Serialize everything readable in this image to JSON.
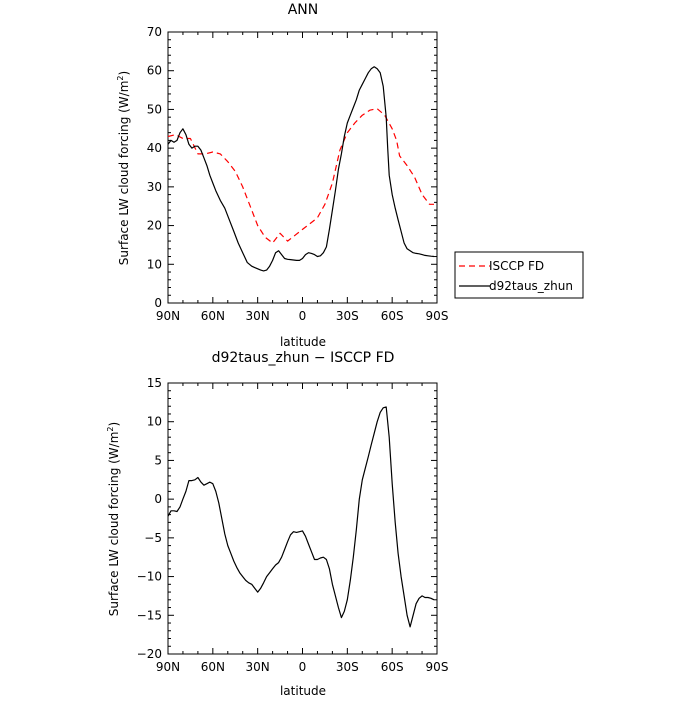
{
  "chart_data": [
    {
      "type": "line",
      "title": "ANN",
      "xlabel": "latitude",
      "ylabel": "Surface LW cloud forcing (W/m²)",
      "ylabel_main": "Surface LW cloud forcing (W/m",
      "ylabel_sup": "2",
      "ylabel_tail": ")",
      "xlim": [
        90,
        -90
      ],
      "ylim": [
        0,
        70
      ],
      "xticks": [
        90,
        60,
        30,
        0,
        -30,
        -60,
        -90
      ],
      "xtick_labels": [
        "90N",
        "60N",
        "30N",
        "0",
        "30S",
        "60S",
        "90S"
      ],
      "yticks": [
        0,
        10,
        20,
        30,
        40,
        50,
        60,
        70
      ],
      "ytick_labels": [
        "0",
        "10",
        "20",
        "30",
        "40",
        "50",
        "60",
        "70"
      ],
      "grid": false,
      "legend_position": "right",
      "series": [
        {
          "name": "ISCCP FD",
          "color": "#ff0000",
          "dash": "dashed",
          "x": [
            90,
            85,
            80,
            75,
            70,
            65,
            60,
            55,
            50,
            45,
            40,
            35,
            30,
            25,
            20,
            15,
            10,
            5,
            0,
            -5,
            -10,
            -15,
            -20,
            -25,
            -30,
            -35,
            -40,
            -45,
            -50,
            -55,
            -60,
            -63,
            -65,
            -70,
            -75,
            -80,
            -85,
            -88
          ],
          "values": [
            43,
            43.5,
            42.5,
            42.5,
            38.5,
            38.5,
            39,
            38.5,
            36.5,
            34,
            30,
            25,
            20,
            17,
            15.5,
            18,
            16,
            17.5,
            19,
            20.5,
            22,
            25.5,
            31,
            39.5,
            44,
            46.5,
            48.5,
            49.8,
            50.2,
            48.5,
            45,
            42,
            38,
            35.5,
            32.5,
            28,
            25.5,
            25.5
          ]
        },
        {
          "name": "d92taus_zhun",
          "color": "#000000",
          "dash": "solid",
          "x": [
            90,
            88,
            86,
            84,
            82,
            80,
            78,
            76,
            74,
            72,
            70,
            68,
            66,
            64,
            62,
            60,
            58,
            55,
            52,
            49,
            46,
            43,
            40,
            37,
            34,
            31,
            28,
            26,
            24,
            22,
            20,
            18,
            16,
            14,
            12,
            10,
            8,
            6,
            4,
            2,
            0,
            -2,
            -4,
            -6,
            -8,
            -10,
            -12,
            -14,
            -16,
            -18,
            -20,
            -22,
            -24,
            -26,
            -28,
            -30,
            -32,
            -34,
            -36,
            -38,
            -40,
            -42,
            -44,
            -46,
            -48,
            -50,
            -52,
            -54,
            -56,
            -57,
            -58,
            -60,
            -62,
            -64,
            -66,
            -68,
            -70,
            -72,
            -74,
            -76,
            -78,
            -80,
            -82,
            -84,
            -86,
            -88
          ],
          "values": [
            41,
            42,
            41.5,
            42,
            44,
            45,
            43.5,
            41,
            40,
            40.5,
            40.5,
            39.5,
            37.5,
            35.5,
            33,
            31,
            29,
            26.5,
            24.5,
            21.5,
            18.5,
            15.5,
            13,
            10.5,
            9.5,
            9,
            8.5,
            8.3,
            8.5,
            9.5,
            11,
            13,
            13.5,
            12.5,
            11.5,
            11.3,
            11.2,
            11.1,
            11,
            11,
            11.5,
            12.5,
            13,
            12.8,
            12.5,
            12,
            12.2,
            13,
            14.5,
            19,
            24,
            29,
            34.5,
            38.5,
            43,
            46.5,
            48.5,
            50.5,
            52.5,
            55,
            56.5,
            58,
            59.5,
            60.5,
            61,
            60.5,
            59.5,
            56,
            48,
            40,
            33,
            28,
            24.5,
            21.5,
            18.5,
            15.5,
            14,
            13.5,
            13,
            12.8,
            12.7,
            12.5,
            12.3,
            12.2,
            12.1,
            12
          ]
        }
      ]
    },
    {
      "type": "line",
      "title": "d92taus_zhun − ISCCP FD",
      "xlabel": "latitude",
      "ylabel": "Surface LW cloud forcing (W/m²)",
      "ylabel_main": "Surface LW cloud forcing (W/m",
      "ylabel_sup": "2",
      "ylabel_tail": ")",
      "xlim": [
        90,
        -90
      ],
      "ylim": [
        -20,
        15
      ],
      "xticks": [
        90,
        60,
        30,
        0,
        -30,
        -60,
        -90
      ],
      "xtick_labels": [
        "90N",
        "60N",
        "30N",
        "0",
        "30S",
        "60S",
        "90S"
      ],
      "yticks": [
        -20,
        -15,
        -10,
        -5,
        0,
        5,
        10,
        15
      ],
      "ytick_labels": [
        "−20",
        "−15",
        "−10",
        "−5",
        "0",
        "5",
        "10",
        "15"
      ],
      "grid": false,
      "series": [
        {
          "color": "#000000",
          "dash": "solid",
          "x": [
            90,
            88,
            86,
            84,
            82,
            80,
            78,
            76,
            74,
            72,
            70,
            68,
            66,
            64,
            62,
            60,
            58,
            56,
            54,
            52,
            50,
            48,
            46,
            44,
            42,
            40,
            38,
            36,
            34,
            32,
            30,
            28,
            26,
            24,
            22,
            20,
            18,
            16,
            14,
            12,
            10,
            8,
            6,
            4,
            2,
            0,
            -2,
            -4,
            -6,
            -8,
            -10,
            -12,
            -14,
            -16,
            -18,
            -20,
            -22,
            -24,
            -26,
            -28,
            -30,
            -32,
            -34,
            -36,
            -38,
            -40,
            -42,
            -44,
            -46,
            -48,
            -50,
            -52,
            -54,
            -56,
            -58,
            -60,
            -62,
            -64,
            -66,
            -68,
            -70,
            -72,
            -74,
            -76,
            -78,
            -80,
            -82,
            -84,
            -86,
            -88
          ],
          "values": [
            -2.2,
            -1.5,
            -1.5,
            -1.6,
            -1,
            0,
            1,
            2.4,
            2.4,
            2.5,
            2.8,
            2.2,
            1.8,
            2,
            2.2,
            2,
            1,
            -0.5,
            -2.5,
            -4.5,
            -6,
            -7,
            -8,
            -8.8,
            -9.5,
            -10,
            -10.5,
            -10.8,
            -11,
            -11.5,
            -12,
            -11.5,
            -10.8,
            -10,
            -9.5,
            -9,
            -8.5,
            -8.2,
            -7.5,
            -6.5,
            -5.5,
            -4.6,
            -4.2,
            -4.3,
            -4.2,
            -4.1,
            -4.8,
            -5.8,
            -6.8,
            -7.8,
            -7.8,
            -7.6,
            -7.5,
            -7.8,
            -9,
            -11,
            -12.5,
            -14,
            -15.3,
            -14.5,
            -13,
            -10.5,
            -7.5,
            -4,
            0,
            2.5,
            4,
            5.5,
            7,
            8.5,
            10,
            11.2,
            11.8,
            11.9,
            8,
            2,
            -3,
            -7,
            -10,
            -12.5,
            -15,
            -16.5,
            -15,
            -13.5,
            -12.8,
            -12.5,
            -12.7,
            -12.7,
            -12.8,
            -13
          ]
        }
      ]
    }
  ]
}
